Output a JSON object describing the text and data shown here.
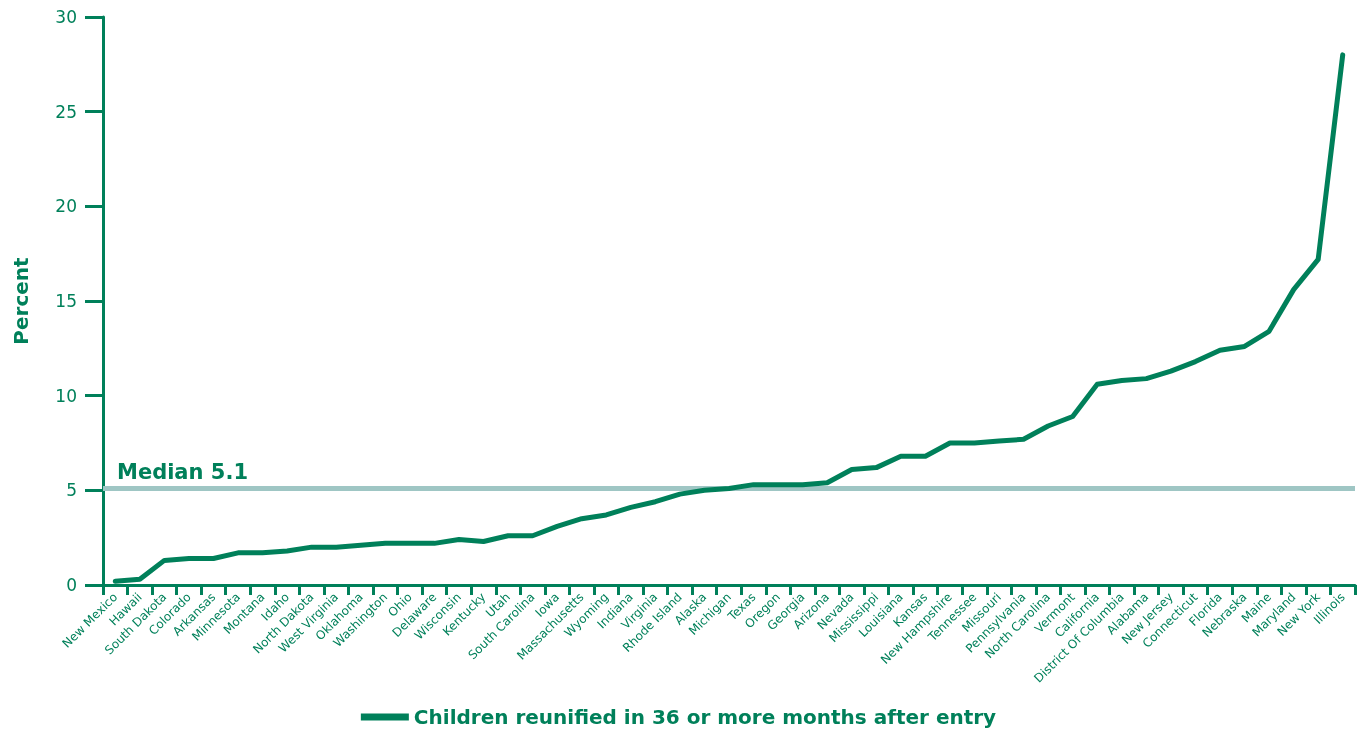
{
  "chart_data": {
    "type": "line",
    "ylabel": "Percent",
    "categories": [
      "New Mexico",
      "Hawaii",
      "South Dakota",
      "Colorado",
      "Arkansas",
      "Minnesota",
      "Montana",
      "Idaho",
      "North Dakota",
      "West Virginia",
      "Oklahoma",
      "Washington",
      "Ohio",
      "Delaware",
      "Wisconsin",
      "Kentucky",
      "Utah",
      "South Carolina",
      "Iowa",
      "Massachusetts",
      "Wyoming",
      "Indiana",
      "Virginia",
      "Rhode Island",
      "Alaska",
      "Michigan",
      "Texas",
      "Oregon",
      "Georgia",
      "Arizona",
      "Nevada",
      "Mississippi",
      "Louisiana",
      "Kansas",
      "New Hampshire",
      "Tennessee",
      "Missouri",
      "Pennsylvania",
      "North Carolina",
      "Vermont",
      "California",
      "District Of Columbia",
      "Alabama",
      "New Jersey",
      "Connecticut",
      "Florida",
      "Nebraska",
      "Maine",
      "Maryland",
      "New York",
      "Illinois"
    ],
    "series": [
      {
        "name": "Children reunified in 36 or more months after entry",
        "color": "#00805a",
        "values": [
          0.2,
          0.3,
          1.3,
          1.4,
          1.4,
          1.7,
          1.7,
          1.8,
          2.0,
          2.0,
          2.1,
          2.2,
          2.2,
          2.2,
          2.4,
          2.3,
          2.6,
          2.6,
          3.1,
          3.5,
          3.7,
          4.1,
          4.4,
          4.8,
          5.0,
          5.1,
          5.3,
          5.3,
          5.3,
          5.4,
          6.1,
          6.2,
          6.8,
          6.8,
          7.5,
          7.5,
          7.6,
          7.7,
          8.4,
          8.9,
          10.6,
          10.8,
          10.9,
          11.3,
          11.8,
          12.4,
          12.6,
          13.4,
          15.6,
          17.2,
          28.0
        ]
      }
    ],
    "ylim": [
      0,
      30
    ],
    "yticks": [
      0,
      5,
      10,
      15,
      20,
      25,
      30
    ],
    "ref_lines": [
      {
        "axis": "y",
        "value": 5.1,
        "label": "Median 5.1",
        "color": "#9fc6c4"
      }
    ],
    "grid": false,
    "legend": "bottom",
    "marker": "none",
    "line_style": "solid"
  }
}
